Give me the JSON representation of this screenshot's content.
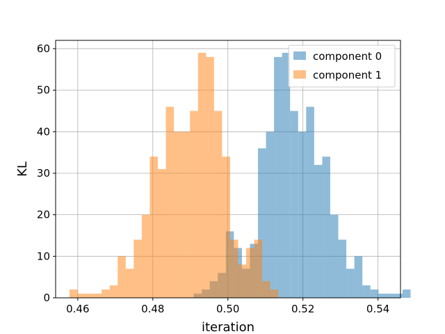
{
  "chart_data": {
    "type": "bar",
    "subtype": "overlapping-histogram",
    "title": "",
    "xlabel": "iteration",
    "ylabel": "KL",
    "xlim": [
      0.4541,
      0.546
    ],
    "ylim": [
      0,
      62
    ],
    "xticks": [
      0.46,
      0.48,
      0.5,
      0.52,
      0.54
    ],
    "xtick_labels": [
      "0.46",
      "0.48",
      "0.50",
      "0.52",
      "0.54"
    ],
    "yticks": [
      0,
      10,
      20,
      30,
      40,
      50,
      60
    ],
    "ytick_labels": [
      "0",
      "10",
      "20",
      "30",
      "40",
      "50",
      "60"
    ],
    "grid": true,
    "legend_position": "top-right",
    "series": [
      {
        "name": "component 0",
        "color": "#1f77b4",
        "alpha": 0.5,
        "bin_start": 0.4909,
        "bin_width": 0.00214,
        "counts": [
          1,
          2,
          4,
          6,
          16,
          12,
          7,
          13,
          36,
          40,
          58,
          59,
          45,
          40,
          46,
          32,
          34,
          20,
          14,
          7,
          10,
          3,
          2,
          1,
          1,
          1,
          2
        ]
      },
      {
        "name": "component 1",
        "color": "#ff7f0e",
        "alpha": 0.5,
        "bin_start": 0.4578,
        "bin_width": 0.00214,
        "counts": [
          2,
          1,
          1,
          1,
          2,
          3,
          10,
          7,
          14,
          20,
          34,
          31,
          46,
          40,
          40,
          45,
          59,
          58,
          45,
          34,
          14,
          8,
          12,
          14,
          4,
          2
        ]
      }
    ]
  }
}
